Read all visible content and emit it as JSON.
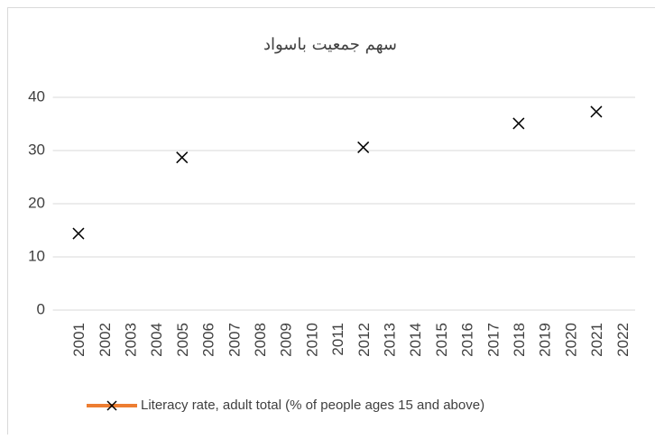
{
  "chart_data": {
    "type": "line",
    "title": "سهم جمعیت باسواد",
    "categories": [
      "2001",
      "2002",
      "2003",
      "2004",
      "2005",
      "2006",
      "2007",
      "2008",
      "2009",
      "2010",
      "2011",
      "2012",
      "2013",
      "2014",
      "2015",
      "2016",
      "2017",
      "2018",
      "2019",
      "2020",
      "2021",
      "2022"
    ],
    "series": [
      {
        "name": "Literacy rate, adult total (% of people ages 15 and above)",
        "color": "#ed7d31",
        "marker_color": "#000000",
        "values": [
          14.4,
          null,
          null,
          null,
          28.7,
          null,
          null,
          null,
          null,
          null,
          null,
          30.6,
          null,
          null,
          null,
          null,
          null,
          35.1,
          null,
          null,
          37.3,
          null
        ]
      }
    ],
    "ylim": [
      0,
      40
    ],
    "yticks": [
      0,
      10,
      20,
      30,
      40
    ],
    "grid": true,
    "legend": "bottom"
  }
}
